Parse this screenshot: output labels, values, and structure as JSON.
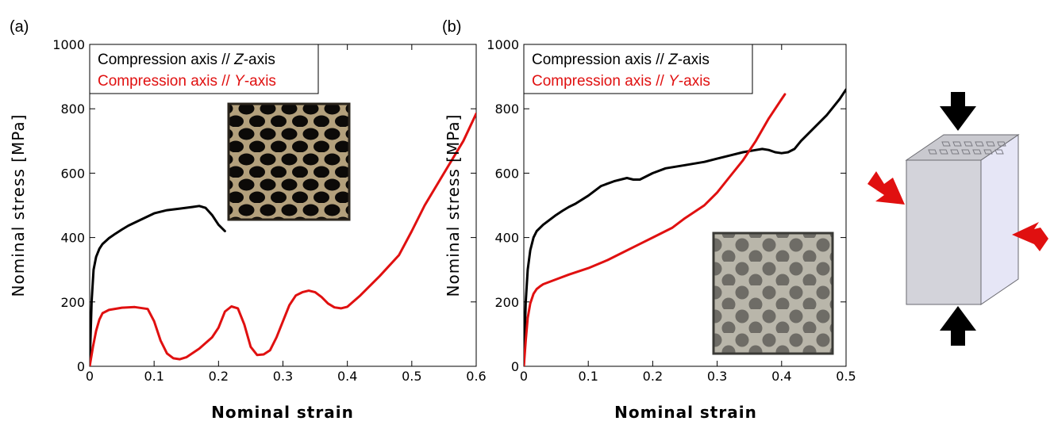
{
  "figure": {
    "cube_colors": {
      "top": "#c9c9cf",
      "front": "#d3d3da",
      "side": "#e6e6f6",
      "edge": "#6a6a70"
    },
    "load_arrows": {
      "vertical_color": "#000000",
      "lateral_color": "#e01010"
    }
  },
  "chart_data": [
    {
      "id": "a",
      "panel_label": "(a)",
      "type": "line",
      "xlabel": "Nominal strain",
      "ylabel": "Nominal stress [MPa]",
      "xlim": [
        0,
        0.6
      ],
      "ylim": [
        0,
        1000
      ],
      "xticks": [
        "0",
        "0.1",
        "0.2",
        "0.3",
        "0.4",
        "0.5",
        "0.6"
      ],
      "yticks": [
        "0",
        "200",
        "400",
        "600",
        "800",
        "1000"
      ],
      "grid": false,
      "legend_position": "top-left",
      "inset": {
        "description_color": "#6b5a40",
        "position": "upper-right"
      },
      "series": [
        {
          "name": "Compression axis // Z-axis",
          "legend_parts": [
            "Compression axis // ",
            "Z",
            "-axis"
          ],
          "color": "#000000",
          "x": [
            0,
            0.003,
            0.006,
            0.01,
            0.015,
            0.02,
            0.03,
            0.04,
            0.05,
            0.06,
            0.08,
            0.1,
            0.12,
            0.14,
            0.16,
            0.17,
            0.18,
            0.19,
            0.2,
            0.21
          ],
          "y": [
            0,
            200,
            300,
            340,
            365,
            380,
            398,
            412,
            425,
            437,
            456,
            475,
            485,
            490,
            495,
            498,
            492,
            470,
            440,
            420
          ]
        },
        {
          "name": "Compression axis // Y-axis",
          "legend_parts": [
            "Compression axis // ",
            "Y",
            "-axis"
          ],
          "color": "#e01010",
          "x": [
            0,
            0.005,
            0.01,
            0.015,
            0.02,
            0.03,
            0.05,
            0.07,
            0.09,
            0.1,
            0.11,
            0.12,
            0.13,
            0.14,
            0.15,
            0.17,
            0.19,
            0.2,
            0.21,
            0.22,
            0.23,
            0.24,
            0.25,
            0.26,
            0.27,
            0.28,
            0.29,
            0.3,
            0.31,
            0.32,
            0.33,
            0.34,
            0.35,
            0.36,
            0.37,
            0.38,
            0.39,
            0.4,
            0.42,
            0.45,
            0.48,
            0.5,
            0.52,
            0.55,
            0.58,
            0.6
          ],
          "y": [
            0,
            60,
            110,
            145,
            165,
            175,
            182,
            184,
            178,
            140,
            80,
            40,
            25,
            22,
            28,
            55,
            90,
            120,
            170,
            186,
            180,
            130,
            60,
            35,
            37,
            50,
            90,
            140,
            190,
            220,
            230,
            235,
            230,
            215,
            195,
            183,
            180,
            185,
            220,
            280,
            345,
            420,
            500,
            600,
            700,
            785
          ]
        }
      ]
    },
    {
      "id": "b",
      "panel_label": "(b)",
      "type": "line",
      "xlabel": "Nominal strain",
      "ylabel": "Nominal stress [MPa]",
      "xlim": [
        0,
        0.5
      ],
      "ylim": [
        0,
        1000
      ],
      "xticks": [
        "0",
        "0.1",
        "0.2",
        "0.3",
        "0.4",
        "0.5"
      ],
      "yticks": [
        "0",
        "200",
        "400",
        "600",
        "800",
        "1000"
      ],
      "grid": false,
      "legend_position": "top-left",
      "inset": {
        "description_color": "#8a8574",
        "position": "lower-right"
      },
      "series": [
        {
          "name": "Compression axis // Z-axis",
          "legend_parts": [
            "Compression axis // ",
            "Z",
            "-axis"
          ],
          "color": "#000000",
          "x": [
            0,
            0.003,
            0.006,
            0.01,
            0.015,
            0.02,
            0.03,
            0.04,
            0.05,
            0.06,
            0.07,
            0.08,
            0.1,
            0.12,
            0.14,
            0.16,
            0.17,
            0.18,
            0.2,
            0.22,
            0.25,
            0.28,
            0.3,
            0.32,
            0.34,
            0.36,
            0.37,
            0.38,
            0.39,
            0.4,
            0.41,
            0.42,
            0.43,
            0.45,
            0.47,
            0.49,
            0.5
          ],
          "y": [
            0,
            200,
            300,
            360,
            400,
            420,
            440,
            455,
            470,
            483,
            495,
            505,
            530,
            560,
            575,
            585,
            580,
            580,
            600,
            615,
            625,
            635,
            645,
            655,
            665,
            672,
            675,
            672,
            665,
            662,
            665,
            675,
            700,
            740,
            780,
            830,
            860
          ]
        },
        {
          "name": "Compression axis // Y-axis",
          "legend_parts": [
            "Compression axis // ",
            "Y",
            "-axis"
          ],
          "color": "#e01010",
          "x": [
            0,
            0.003,
            0.006,
            0.01,
            0.015,
            0.02,
            0.025,
            0.03,
            0.05,
            0.07,
            0.1,
            0.13,
            0.15,
            0.18,
            0.2,
            0.23,
            0.25,
            0.28,
            0.3,
            0.32,
            0.34,
            0.36,
            0.38,
            0.4,
            0.405
          ],
          "y": [
            0,
            80,
            150,
            195,
            225,
            240,
            248,
            255,
            270,
            285,
            305,
            330,
            350,
            380,
            400,
            430,
            460,
            500,
            540,
            590,
            640,
            700,
            770,
            830,
            845
          ]
        }
      ]
    }
  ]
}
